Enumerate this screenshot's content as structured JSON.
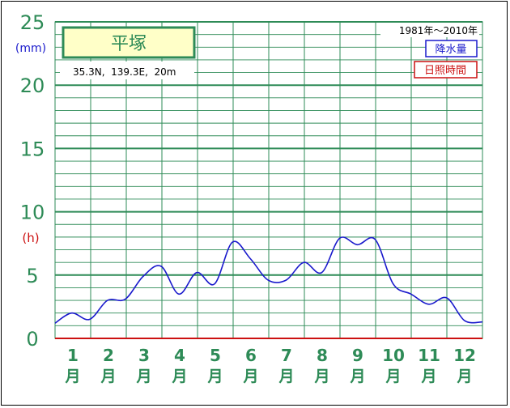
{
  "chart_data": {
    "type": "line",
    "title": "平塚",
    "location": "35.3N,  139.3E,  20m",
    "period": "1981年〜2010年",
    "legend": [
      {
        "label": "降水量",
        "color": "#1a1acc"
      },
      {
        "label": "日照時間",
        "color": "#cc1111"
      }
    ],
    "y_unit_left": "(mm)",
    "y_unit_left2": "(h)",
    "y_ticks": [
      "0",
      "5",
      "10",
      "15",
      "20",
      "25"
    ],
    "ylim": [
      0,
      25
    ],
    "month_labels": [
      "1",
      "2",
      "3",
      "4",
      "5",
      "6",
      "7",
      "8",
      "9",
      "10",
      "11",
      "12"
    ],
    "month_suffix": "月",
    "grid": true,
    "series": [
      {
        "color": "#1a1acc",
        "x": [
          1,
          15,
          30,
          45,
          60,
          75,
          90,
          105,
          120,
          135,
          150,
          165,
          180,
          195,
          210,
          225,
          240,
          255,
          270,
          285,
          300,
          315,
          330,
          345,
          360
        ],
        "values": [
          1.2,
          2.0,
          1.5,
          3.0,
          3.1,
          4.9,
          5.7,
          3.5,
          5.2,
          4.3,
          7.6,
          6.3,
          4.6,
          4.6,
          6.0,
          5.2,
          7.9,
          7.4,
          7.8,
          4.3,
          3.5,
          2.7,
          3.2,
          1.4,
          1.3
        ]
      },
      {
        "color": "#cc1111",
        "x": [
          1,
          360
        ],
        "values": [
          0,
          0
        ]
      }
    ]
  }
}
